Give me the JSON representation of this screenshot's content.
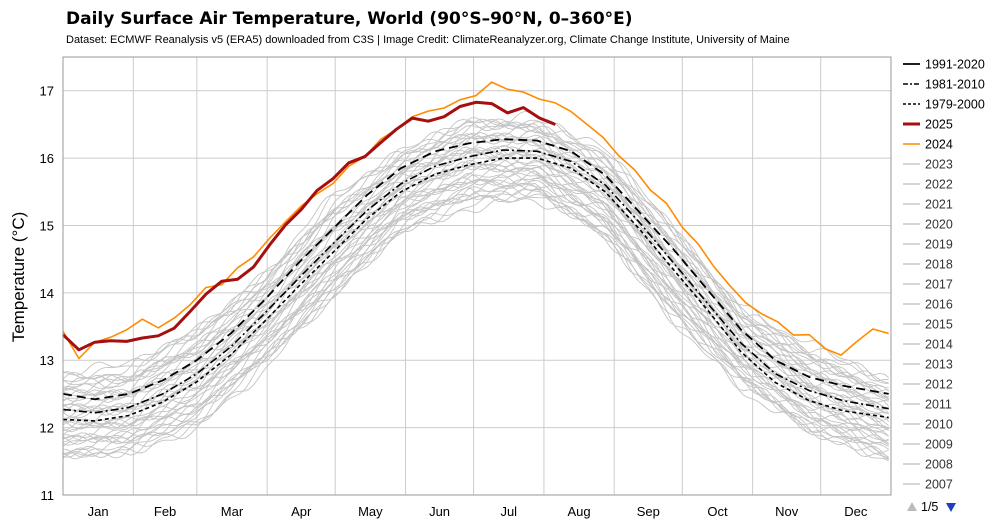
{
  "chart_data": {
    "type": "line",
    "title": "Daily Surface Air Temperature, World (90°S–90°N, 0–360°E)",
    "subtitle": "Dataset: ECMWF Reanalysis v5 (ERA5) downloaded from C3S | Image Credit: ClimateReanalyzer.org, Climate Change Institute, University of Maine",
    "ylabel": "Temperature (°C)",
    "xlabel": "",
    "ylim": [
      11,
      17.5
    ],
    "yticks": [
      11,
      12,
      13,
      14,
      15,
      16,
      17
    ],
    "xlim": [
      1,
      366
    ],
    "months": [
      "Jan",
      "Feb",
      "Mar",
      "Apr",
      "May",
      "Jun",
      "Jul",
      "Aug",
      "Sep",
      "Oct",
      "Nov",
      "Dec"
    ],
    "grid": true,
    "legend_position": "right",
    "series": [
      {
        "name": "1991-2020",
        "style": "dash-long",
        "color": "#000000",
        "x": [
          1,
          15,
          30,
          45,
          60,
          75,
          90,
          105,
          120,
          135,
          150,
          165,
          180,
          195,
          210,
          225,
          240,
          255,
          270,
          285,
          300,
          315,
          330,
          345,
          365
        ],
        "y": [
          12.5,
          12.42,
          12.5,
          12.7,
          13.0,
          13.4,
          13.9,
          14.45,
          14.95,
          15.45,
          15.85,
          16.1,
          16.22,
          16.28,
          16.26,
          16.1,
          15.75,
          15.2,
          14.65,
          14.05,
          13.45,
          13.0,
          12.75,
          12.62,
          12.5
        ]
      },
      {
        "name": "1981-2010",
        "style": "dash-dot",
        "color": "#000000",
        "x": [
          1,
          15,
          30,
          45,
          60,
          75,
          90,
          105,
          120,
          135,
          150,
          165,
          180,
          195,
          210,
          225,
          240,
          255,
          270,
          285,
          300,
          315,
          330,
          345,
          365
        ],
        "y": [
          12.27,
          12.22,
          12.3,
          12.5,
          12.8,
          13.2,
          13.7,
          14.22,
          14.73,
          15.22,
          15.62,
          15.88,
          16.02,
          16.12,
          16.1,
          15.95,
          15.6,
          15.05,
          14.45,
          13.85,
          13.25,
          12.8,
          12.55,
          12.4,
          12.28
        ]
      },
      {
        "name": "1979-2000",
        "style": "dash-short",
        "color": "#000000",
        "x": [
          1,
          15,
          30,
          45,
          60,
          75,
          90,
          105,
          120,
          135,
          150,
          165,
          180,
          195,
          210,
          225,
          240,
          255,
          270,
          285,
          300,
          315,
          330,
          345,
          365
        ],
        "y": [
          12.12,
          12.1,
          12.18,
          12.38,
          12.68,
          13.08,
          13.58,
          14.1,
          14.6,
          15.1,
          15.5,
          15.76,
          15.9,
          16.0,
          16.0,
          15.85,
          15.5,
          14.95,
          14.35,
          13.75,
          13.12,
          12.67,
          12.4,
          12.25,
          12.15
        ]
      },
      {
        "name": "2025",
        "style": "solid-thick",
        "color": "#a50f0f",
        "x": [
          1,
          8,
          15,
          22,
          29,
          36,
          43,
          50,
          57,
          64,
          71,
          78,
          85,
          92,
          99,
          106,
          113,
          120,
          127,
          134,
          141,
          148,
          155,
          162,
          169,
          176,
          183,
          190,
          197,
          204,
          211,
          218
        ],
        "y": [
          13.35,
          13.18,
          13.25,
          13.3,
          13.28,
          13.32,
          13.38,
          13.45,
          13.75,
          13.95,
          14.2,
          14.18,
          14.4,
          14.7,
          15.0,
          15.25,
          15.5,
          15.72,
          15.9,
          16.05,
          16.2,
          16.45,
          16.58,
          16.55,
          16.62,
          16.75,
          16.85,
          16.78,
          16.7,
          16.72,
          16.62,
          16.48
        ]
      },
      {
        "name": "2024",
        "style": "solid",
        "color": "#ff8c00",
        "x": [
          1,
          8,
          15,
          22,
          29,
          36,
          43,
          50,
          57,
          64,
          71,
          78,
          85,
          92,
          99,
          106,
          113,
          120,
          127,
          134,
          141,
          148,
          155,
          162,
          169,
          176,
          183,
          190,
          197,
          204,
          211,
          218,
          225,
          232,
          239,
          246,
          253,
          260,
          267,
          274,
          281,
          288,
          295,
          302,
          309,
          316,
          323,
          330,
          337,
          344,
          351,
          358,
          365
        ],
        "y": [
          13.4,
          13.05,
          13.25,
          13.35,
          13.45,
          13.6,
          13.5,
          13.6,
          13.85,
          14.05,
          14.15,
          14.35,
          14.55,
          14.8,
          15.05,
          15.3,
          15.45,
          15.65,
          15.85,
          16.05,
          16.25,
          16.45,
          16.6,
          16.7,
          16.75,
          16.85,
          16.95,
          17.1,
          17.05,
          16.95,
          16.9,
          16.8,
          16.7,
          16.5,
          16.3,
          16.05,
          15.8,
          15.55,
          15.3,
          15.0,
          14.7,
          14.4,
          14.1,
          13.85,
          13.7,
          13.55,
          13.4,
          13.35,
          13.2,
          13.05,
          13.3,
          13.45,
          13.4
        ]
      },
      {
        "name": "2023",
        "style": "solid-gray",
        "color": "#c8c8c8"
      },
      {
        "name": "2022",
        "style": "solid-gray",
        "color": "#c8c8c8"
      },
      {
        "name": "2021",
        "style": "solid-gray",
        "color": "#c8c8c8"
      },
      {
        "name": "2020",
        "style": "solid-gray",
        "color": "#c8c8c8"
      },
      {
        "name": "2019",
        "style": "solid-gray",
        "color": "#c8c8c8"
      },
      {
        "name": "2018",
        "style": "solid-gray",
        "color": "#c8c8c8"
      },
      {
        "name": "2017",
        "style": "solid-gray",
        "color": "#c8c8c8"
      },
      {
        "name": "2016",
        "style": "solid-gray",
        "color": "#c8c8c8"
      },
      {
        "name": "2015",
        "style": "solid-gray",
        "color": "#c8c8c8"
      },
      {
        "name": "2014",
        "style": "solid-gray",
        "color": "#c8c8c8"
      },
      {
        "name": "2013",
        "style": "solid-gray",
        "color": "#c8c8c8"
      },
      {
        "name": "2012",
        "style": "solid-gray",
        "color": "#c8c8c8"
      },
      {
        "name": "2011",
        "style": "solid-gray",
        "color": "#c8c8c8"
      },
      {
        "name": "2010",
        "style": "solid-gray",
        "color": "#c8c8c8"
      },
      {
        "name": "2009",
        "style": "solid-gray",
        "color": "#c8c8c8"
      },
      {
        "name": "2008",
        "style": "solid-gray",
        "color": "#c8c8c8"
      },
      {
        "name": "2007",
        "style": "solid-gray",
        "color": "#c8c8c8"
      }
    ],
    "background_years_envelope": {
      "x": [
        1,
        30,
        60,
        90,
        120,
        150,
        180,
        210,
        240,
        270,
        300,
        330,
        365
      ],
      "low": [
        11.5,
        11.6,
        12.0,
        12.9,
        13.9,
        14.9,
        15.3,
        15.4,
        14.8,
        13.6,
        12.6,
        11.9,
        11.5
      ],
      "high": [
        12.8,
        12.9,
        13.5,
        14.3,
        15.4,
        16.1,
        16.6,
        16.6,
        16.1,
        15.0,
        13.8,
        13.2,
        12.7
      ]
    }
  },
  "legend_pager": {
    "label": "1/5",
    "up_icon": "triangle-up-icon",
    "down_icon": "triangle-down-icon",
    "up_color": "#bbbbbb",
    "down_color": "#1f3fbf"
  }
}
